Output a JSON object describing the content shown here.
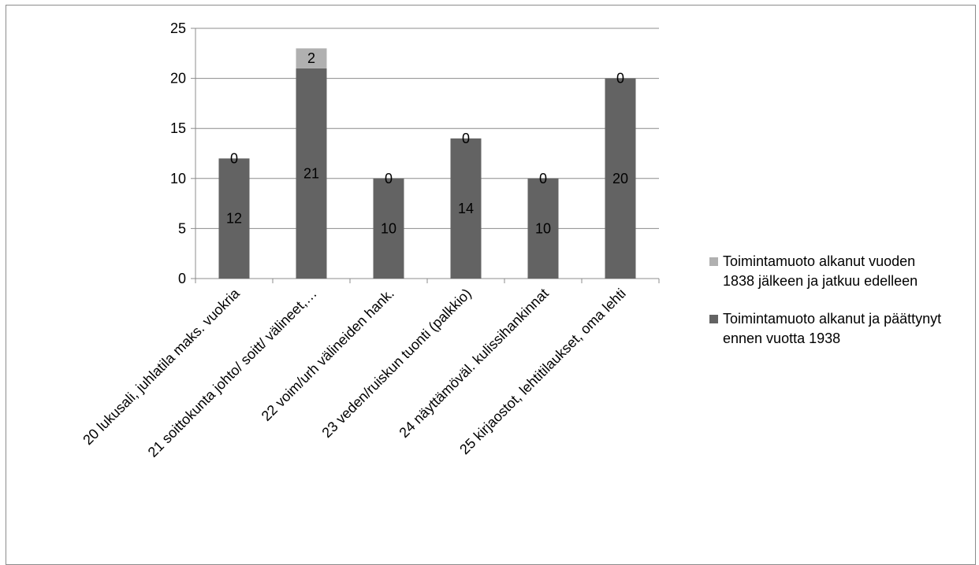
{
  "chart_data": {
    "type": "bar",
    "stacked": true,
    "title": "",
    "xlabel": "",
    "ylabel": "",
    "ylim": [
      0,
      25
    ],
    "yticks": [
      "0",
      "5",
      "10",
      "15",
      "20",
      "25"
    ],
    "grid": true,
    "legend_position": "right",
    "categories": [
      "20 lukusali, juhlatila maks. vuokria",
      "21 soittokunta johto/ soitt/ välineet,…",
      "22 voim/urh välineiden hank.",
      "23 veden/ruiskun tuonti (palkkio)",
      "24 näyttämöväl. kulissihankinnat",
      "25 kirjaostot, lehtitilaukset, oma lehti"
    ],
    "series": [
      {
        "name": "Toimintamuoto alkanut ja päättynyt ennen vuotta 1938",
        "color": "#636363",
        "values": [
          12,
          21,
          10,
          14,
          10,
          20
        ],
        "labels": [
          "12",
          "21",
          "10",
          "14",
          "10",
          "20"
        ]
      },
      {
        "name": "Toimintamuoto alkanut vuoden 1838 jälkeen ja jatkuu edelleen",
        "color": "#b0b0b0",
        "values": [
          0,
          2,
          0,
          0,
          0,
          0
        ],
        "labels": [
          "0",
          "2",
          "0",
          "0",
          "0",
          "0"
        ]
      }
    ]
  },
  "legend": [
    {
      "label": "Toimintamuoto alkanut vuoden 1838 jälkeen ja jatkuu edelleen",
      "color": "#b0b0b0"
    },
    {
      "label": "Toimintamuoto alkanut ja päättynyt ennen vuotta 1938",
      "color": "#636363"
    }
  ]
}
